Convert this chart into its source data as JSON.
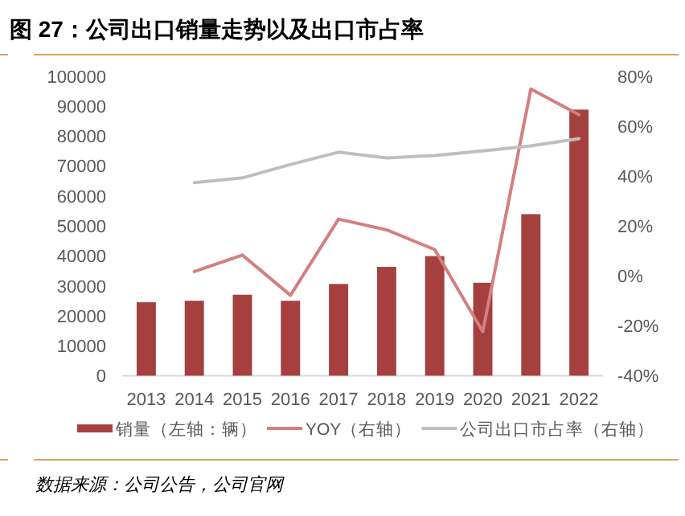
{
  "chart_data": {
    "type": "bar",
    "title": "图 27：公司出口销量走势以及出口市占率",
    "categories": [
      "2013",
      "2014",
      "2015",
      "2016",
      "2017",
      "2018",
      "2019",
      "2020",
      "2021",
      "2022"
    ],
    "series": [
      {
        "name": "销量（左轴：辆）",
        "color": "#a5403f",
        "values": [
          24500,
          25000,
          27000,
          25000,
          30600,
          36300,
          39900,
          31000,
          53900,
          88800
        ]
      },
      {
        "name": "YOY（右轴）",
        "type": "line",
        "axis": "y2",
        "color": "#d47f7f",
        "values": [
          null,
          1.7,
          8.3,
          -7.8,
          22.7,
          18.4,
          10.5,
          -22.4,
          74.8,
          64.5
        ]
      },
      {
        "name": "公司出口市占率（右轴）",
        "type": "line",
        "axis": "y2",
        "color": "#bfbfbf",
        "values": [
          null,
          37.3,
          39.2,
          44.6,
          49.5,
          47.2,
          48.2,
          50.0,
          52.0,
          54.9
        ]
      }
    ],
    "ylim": [
      0,
      100000
    ],
    "yticks": [
      0,
      10000,
      20000,
      30000,
      40000,
      50000,
      60000,
      70000,
      80000,
      90000,
      100000
    ],
    "y2lim": [
      -40,
      80
    ],
    "y2ticks": [
      {
        "value": -40,
        "label": "-40%"
      },
      {
        "value": -20,
        "label": "-20%"
      },
      {
        "value": 0,
        "label": "0%"
      },
      {
        "value": 20,
        "label": "20%"
      },
      {
        "value": 40,
        "label": "40%"
      },
      {
        "value": 60,
        "label": "60%"
      },
      {
        "value": 80,
        "label": "80%"
      }
    ],
    "legend": "bottom",
    "grid": false,
    "annotations": [
      "数据来源：公司公告，公司官网"
    ]
  }
}
